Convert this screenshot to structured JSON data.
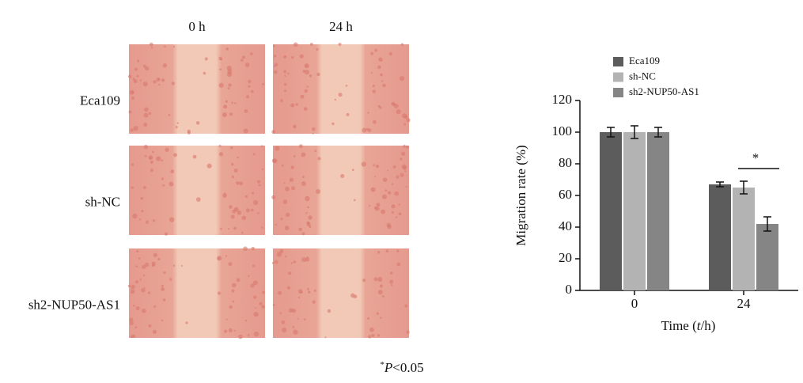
{
  "panel": {
    "columns": [
      "0 h",
      "24 h"
    ],
    "rows": [
      "Eca109",
      "sh-NC",
      "sh2-NUP50-AS1"
    ]
  },
  "chart_data": {
    "type": "bar",
    "ylabel": "Migration rate (%)",
    "xlabel": [
      "Time (",
      "t",
      "/h)"
    ],
    "categories": [
      "0",
      "24"
    ],
    "series": [
      {
        "name": "Eca109",
        "color": "#5c5c5c",
        "values": [
          100,
          67
        ],
        "errors": [
          3,
          1.5
        ]
      },
      {
        "name": "sh-NC",
        "color": "#b3b3b3",
        "values": [
          100,
          65
        ],
        "errors": [
          4,
          4
        ]
      },
      {
        "name": "sh2-NUP50-AS1",
        "color": "#858585",
        "values": [
          100,
          42
        ],
        "errors": [
          3,
          4.5
        ]
      }
    ],
    "ylim": [
      0,
      120
    ],
    "yticks": [
      0,
      20,
      40,
      60,
      80,
      100,
      120
    ],
    "annotation": "*"
  },
  "footnote": {
    "star": "*",
    "p": "P",
    "rest": "<0.05"
  }
}
